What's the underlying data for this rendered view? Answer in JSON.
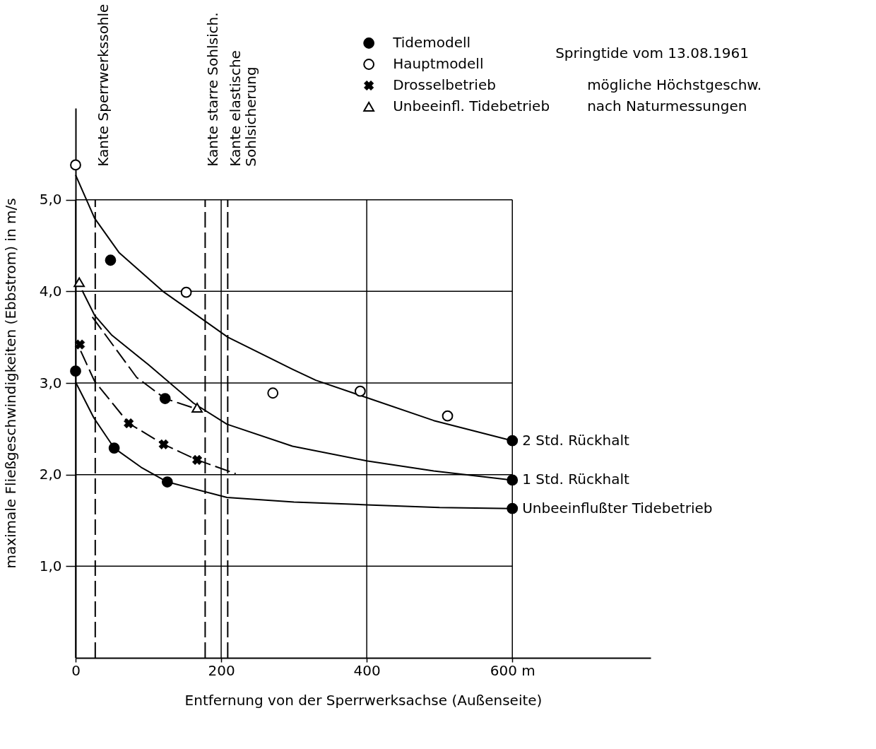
{
  "chart_data": {
    "type": "scatter",
    "xlabel": "Entfernung von der Sperrwerksachse (Außenseite)",
    "ylabel": "maximale Fließgeschwindigkeiten (Ebbstrom) in m/s",
    "xlim": [
      0,
      790
    ],
    "ylim": [
      0,
      6.0
    ],
    "xticks": [
      0,
      200,
      400,
      {
        "value": 600,
        "label": "600 m"
      }
    ],
    "yticks": [
      {
        "value": 1,
        "label": "1,0"
      },
      {
        "value": 2,
        "label": "2,0"
      },
      {
        "value": 3,
        "label": "3,0"
      },
      {
        "value": 4,
        "label": "4,0"
      },
      {
        "value": 5,
        "label": "5,0"
      }
    ],
    "grid": true,
    "legend": "top right",
    "series": [
      {
        "name": "Tidemodell",
        "marker": "circle",
        "color": "#000000",
        "x": [
          0,
          48,
          53,
          123,
          126,
          600,
          600,
          600
        ],
        "values": [
          3.13,
          4.34,
          2.29,
          2.83,
          1.92,
          2.37,
          1.94,
          1.63
        ]
      },
      {
        "name": "Hauptmodell",
        "marker": "circle",
        "color": "#ffffff",
        "x": [
          0,
          152,
          271,
          391,
          511
        ],
        "values": [
          5.38,
          3.99,
          2.89,
          2.91,
          2.64
        ]
      },
      {
        "name": "Drosselbetrieb",
        "marker": "cross",
        "color": "#000000",
        "x": [
          6,
          73,
          121,
          167
        ],
        "values": [
          3.42,
          2.56,
          2.33,
          2.16
        ]
      },
      {
        "name": "Unbeeinfl. Tidebetrieb",
        "marker": "triangle",
        "color": "#ffffff",
        "x": [
          5,
          167
        ],
        "values": [
          4.1,
          2.73
        ]
      },
      {
        "name": "2 Std. Rückhalt",
        "type": "line",
        "line_style": "solid",
        "color": "#000000",
        "x": [
          0,
          26,
          60,
          120,
          209,
          298,
          330,
          400,
          492,
          600
        ],
        "values": [
          5.27,
          4.8,
          4.42,
          4.0,
          3.5,
          3.15,
          3.03,
          2.84,
          2.59,
          2.37
        ]
      },
      {
        "name": "1 Std. Rückhalt",
        "type": "line",
        "line_style": "solid",
        "color": "#000000",
        "x": [
          9,
          26,
          50,
          100,
          162,
          208,
          298,
          400,
          492,
          600
        ],
        "values": [
          4.01,
          3.74,
          3.52,
          3.2,
          2.78,
          2.55,
          2.31,
          2.15,
          2.04,
          1.94
        ]
      },
      {
        "name": "Unbeeinflußter Tidebetrieb",
        "type": "line",
        "line_style": "solid",
        "color": "#000000",
        "x": [
          0,
          25,
          53,
          90,
          126,
          208,
          300,
          400,
          500,
          600
        ],
        "values": [
          3.01,
          2.62,
          2.29,
          2.08,
          1.92,
          1.75,
          1.7,
          1.67,
          1.64,
          1.63
        ]
      },
      {
        "type": "line",
        "line_style": "dashed",
        "color": "#000000",
        "x": [
          23,
          84,
          123,
          165
        ],
        "values": [
          3.72,
          3.06,
          2.83,
          2.72
        ]
      },
      {
        "type": "line",
        "line_style": "dashed",
        "color": "#000000",
        "x": [
          7,
          26,
          73,
          121,
          167,
          220
        ],
        "values": [
          3.35,
          3.02,
          2.56,
          2.33,
          2.16,
          2.01
        ]
      }
    ],
    "ref_lines": [
      {
        "axis": "x",
        "value": 27,
        "label": "Kante Sperrwerkssohle",
        "line_style": "dashed"
      },
      {
        "axis": "x",
        "value": 178,
        "label": "Kante starre Sohlsich.",
        "line_style": "dashed"
      },
      {
        "axis": "x",
        "value": 209,
        "label": "Kante elastische\nSohlsicherung",
        "line_style": "dashed"
      }
    ],
    "annotations": [
      "Springtide vom 13.08.1961",
      "mögliche Höchstgeschw.",
      "nach Naturmessungen"
    ]
  }
}
